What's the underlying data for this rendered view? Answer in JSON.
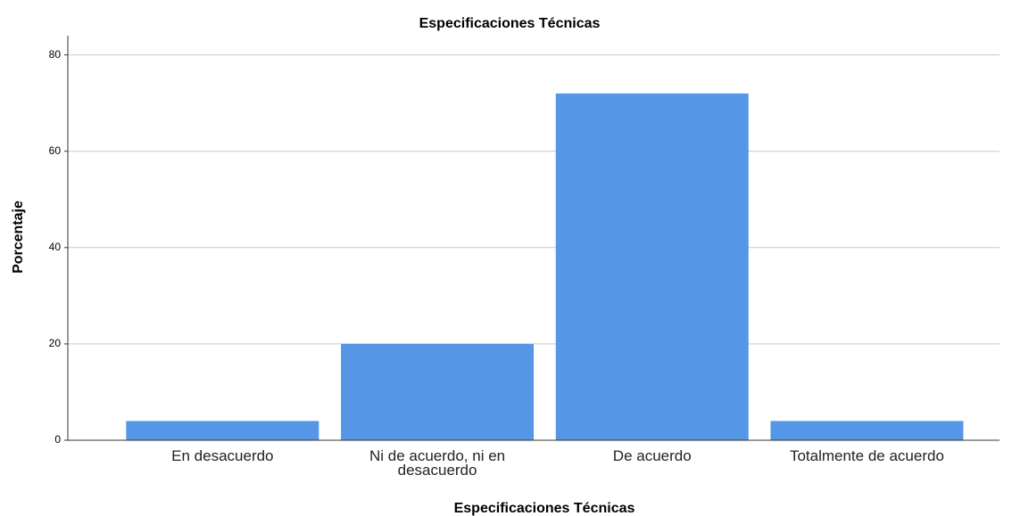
{
  "chart_data": {
    "type": "bar",
    "title": "Especificaciones Técnicas",
    "x_label": "Especificaciones Técnicas",
    "y_label": "Porcentaje",
    "categories": [
      "En desacuerdo",
      "Ni de acuerdo, ni en desacuerdo",
      "De acuerdo",
      "Totalmente de acuerdo"
    ],
    "values": [
      4,
      20,
      72,
      4
    ],
    "color": "#5596e6",
    "ylim": [
      0,
      84
    ],
    "yticks": [
      0,
      20,
      40,
      60,
      80
    ],
    "grid": true
  }
}
